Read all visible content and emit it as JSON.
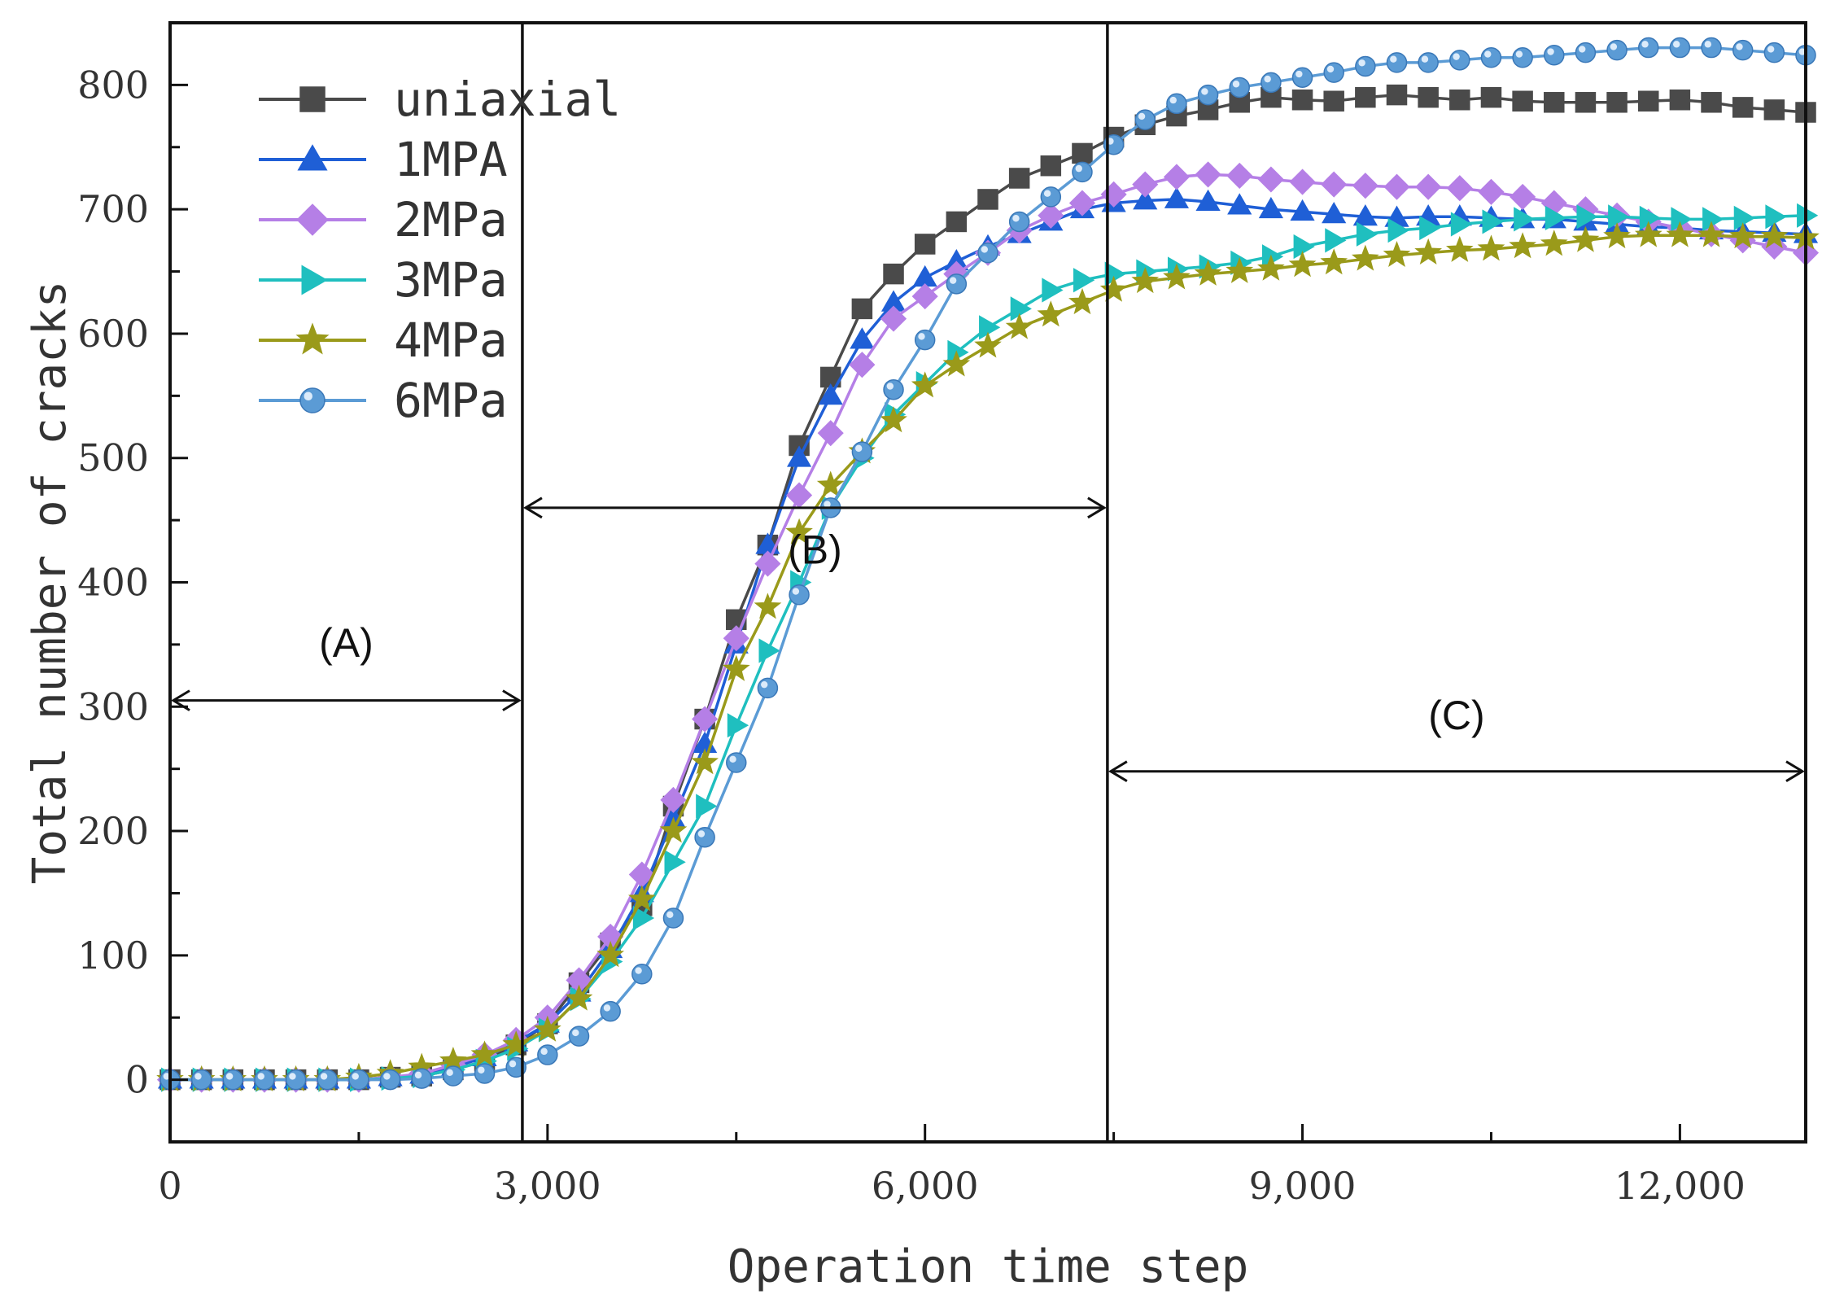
{
  "chart_data": {
    "type": "line",
    "title": "",
    "xlabel": "Operation time step",
    "ylabel": "Total number of cracks",
    "xlim": [
      0,
      13000
    ],
    "ylim": [
      -50,
      850
    ],
    "x_ticks": [
      0,
      3000,
      6000,
      9000,
      12000
    ],
    "x_tick_labels": [
      "0",
      "3,000",
      "6,000",
      "9,000",
      "12,000"
    ],
    "y_ticks": [
      0,
      100,
      200,
      300,
      400,
      500,
      600,
      700,
      800
    ],
    "y_tick_labels": [
      "0",
      "100",
      "200",
      "300",
      "400",
      "500",
      "600",
      "700",
      "800"
    ],
    "legend_position": "top-left",
    "series": [
      {
        "name": "uniaxial",
        "color": "#4a4a4a",
        "marker": "square",
        "x": [
          0,
          250,
          500,
          750,
          1000,
          1250,
          1500,
          1750,
          2000,
          2250,
          2500,
          2750,
          3000,
          3250,
          3500,
          3750,
          4000,
          4250,
          4500,
          4750,
          5000,
          5250,
          5500,
          5750,
          6000,
          6250,
          6500,
          6750,
          7000,
          7250,
          7500,
          7750,
          8000,
          8250,
          8500,
          8750,
          9000,
          9250,
          9500,
          9750,
          10000,
          10250,
          10500,
          10750,
          11000,
          11250,
          11500,
          11750,
          12000,
          12250,
          12500,
          12750,
          13000
        ],
        "y": [
          0,
          0,
          0,
          0,
          0,
          0,
          0,
          2,
          3,
          8,
          15,
          28,
          45,
          78,
          110,
          140,
          220,
          290,
          370,
          430,
          510,
          565,
          620,
          648,
          672,
          690,
          708,
          725,
          735,
          745,
          758,
          768,
          775,
          780,
          786,
          790,
          788,
          787,
          790,
          792,
          790,
          788,
          790,
          787,
          786,
          786,
          786,
          787,
          788,
          786,
          782,
          780,
          778
        ]
      },
      {
        "name": "1MPA",
        "color": "#1f5fd6",
        "marker": "triangle-up",
        "x": [
          0,
          250,
          500,
          750,
          1000,
          1250,
          1500,
          1750,
          2000,
          2250,
          2500,
          2750,
          3000,
          3250,
          3500,
          3750,
          4000,
          4250,
          4500,
          4750,
          5000,
          5250,
          5500,
          5750,
          6000,
          6250,
          6500,
          6750,
          7000,
          7250,
          7500,
          7750,
          8000,
          8250,
          8500,
          8750,
          9000,
          9250,
          9500,
          9750,
          10000,
          10250,
          10500,
          10750,
          11000,
          11250,
          11500,
          11750,
          12000,
          12250,
          12500,
          12750,
          13000
        ],
        "y": [
          0,
          0,
          0,
          0,
          0,
          0,
          0,
          2,
          4,
          10,
          18,
          30,
          45,
          70,
          105,
          150,
          210,
          270,
          350,
          430,
          500,
          550,
          595,
          625,
          645,
          658,
          670,
          680,
          690,
          700,
          705,
          707,
          708,
          706,
          703,
          700,
          698,
          696,
          694,
          693,
          694,
          694,
          693,
          692,
          692,
          690,
          688,
          686,
          685,
          683,
          682,
          681,
          680
        ]
      },
      {
        "name": "2MPa",
        "color": "#b57fe6",
        "marker": "diamond",
        "x": [
          0,
          250,
          500,
          750,
          1000,
          1250,
          1500,
          1750,
          2000,
          2250,
          2500,
          2750,
          3000,
          3250,
          3500,
          3750,
          4000,
          4250,
          4500,
          4750,
          5000,
          5250,
          5500,
          5750,
          6000,
          6250,
          6500,
          6750,
          7000,
          7250,
          7500,
          7750,
          8000,
          8250,
          8500,
          8750,
          9000,
          9250,
          9500,
          9750,
          10000,
          10250,
          10500,
          10750,
          11000,
          11250,
          11500,
          11750,
          12000,
          12250,
          12500,
          12750,
          13000
        ],
        "y": [
          0,
          0,
          0,
          0,
          0,
          0,
          0,
          2,
          5,
          12,
          20,
          32,
          50,
          80,
          115,
          165,
          225,
          290,
          355,
          415,
          470,
          520,
          575,
          612,
          630,
          648,
          665,
          683,
          695,
          705,
          712,
          720,
          726,
          728,
          727,
          724,
          722,
          720,
          719,
          718,
          718,
          717,
          714,
          710,
          705,
          700,
          695,
          690,
          685,
          680,
          675,
          670,
          665
        ]
      },
      {
        "name": "3MPa",
        "color": "#1fbfbf",
        "marker": "triangle-right",
        "x": [
          0,
          250,
          500,
          750,
          1000,
          1250,
          1500,
          1750,
          2000,
          2250,
          2500,
          2750,
          3000,
          3250,
          3500,
          3750,
          4000,
          4250,
          4500,
          4750,
          5000,
          5250,
          5500,
          5750,
          6000,
          6250,
          6500,
          6750,
          7000,
          7250,
          7500,
          7750,
          8000,
          8250,
          8500,
          8750,
          9000,
          9250,
          9500,
          9750,
          10000,
          10250,
          10500,
          10750,
          11000,
          11250,
          11500,
          11750,
          12000,
          12250,
          12500,
          12750,
          13000
        ],
        "y": [
          0,
          0,
          0,
          0,
          0,
          0,
          0,
          1,
          3,
          8,
          15,
          25,
          40,
          65,
          95,
          130,
          175,
          220,
          285,
          345,
          400,
          460,
          500,
          535,
          560,
          585,
          605,
          620,
          635,
          643,
          648,
          650,
          652,
          654,
          657,
          662,
          670,
          675,
          680,
          683,
          685,
          688,
          690,
          692,
          693,
          694,
          694,
          693,
          692,
          692,
          693,
          694,
          695
        ]
      },
      {
        "name": "4MPa",
        "color": "#9a9a1a",
        "marker": "star",
        "x": [
          0,
          250,
          500,
          750,
          1000,
          1250,
          1500,
          1750,
          2000,
          2250,
          2500,
          2750,
          3000,
          3250,
          3500,
          3750,
          4000,
          4250,
          4500,
          4750,
          5000,
          5250,
          5500,
          5750,
          6000,
          6250,
          6500,
          6750,
          7000,
          7250,
          7500,
          7750,
          8000,
          8250,
          8500,
          8750,
          9000,
          9250,
          9500,
          9750,
          10000,
          10250,
          10500,
          10750,
          11000,
          11250,
          11500,
          11750,
          12000,
          12250,
          12500,
          12750,
          13000
        ],
        "y": [
          0,
          0,
          0,
          0,
          0,
          0,
          2,
          5,
          10,
          15,
          20,
          28,
          40,
          65,
          100,
          145,
          200,
          255,
          330,
          380,
          440,
          478,
          505,
          530,
          558,
          575,
          590,
          605,
          615,
          625,
          635,
          642,
          645,
          648,
          650,
          652,
          655,
          657,
          660,
          663,
          665,
          667,
          668,
          670,
          672,
          675,
          678,
          679,
          679,
          679,
          678,
          678,
          677
        ]
      },
      {
        "name": "6MPa",
        "color": "#5b9bd5",
        "marker": "circle",
        "x": [
          0,
          250,
          500,
          750,
          1000,
          1250,
          1500,
          1750,
          2000,
          2250,
          2500,
          2750,
          3000,
          3250,
          3500,
          3750,
          4000,
          4250,
          4500,
          4750,
          5000,
          5250,
          5500,
          5750,
          6000,
          6250,
          6500,
          6750,
          7000,
          7250,
          7500,
          7750,
          8000,
          8250,
          8500,
          8750,
          9000,
          9250,
          9500,
          9750,
          10000,
          10250,
          10500,
          10750,
          11000,
          11250,
          11500,
          11750,
          12000,
          12250,
          12500,
          12750,
          13000
        ],
        "y": [
          0,
          0,
          0,
          0,
          0,
          0,
          0,
          0,
          1,
          3,
          5,
          10,
          20,
          35,
          55,
          85,
          130,
          195,
          255,
          315,
          390,
          460,
          505,
          555,
          595,
          640,
          665,
          690,
          710,
          730,
          752,
          772,
          785,
          792,
          798,
          802,
          806,
          810,
          815,
          818,
          818,
          820,
          822,
          822,
          824,
          826,
          828,
          830,
          830,
          830,
          828,
          826,
          824
        ]
      }
    ],
    "annotations": [
      {
        "label": "(A)",
        "x_start": 0,
        "x_end": 2800,
        "y": 305,
        "label_y": 340
      },
      {
        "label": "(B)",
        "x_start": 2800,
        "x_end": 7450,
        "y": 460,
        "label_y": 415
      },
      {
        "label": "(C)",
        "x_start": 7450,
        "x_end": 13000,
        "y": 248,
        "label_y": 282
      }
    ],
    "boundaries": [
      2800,
      7450
    ]
  }
}
